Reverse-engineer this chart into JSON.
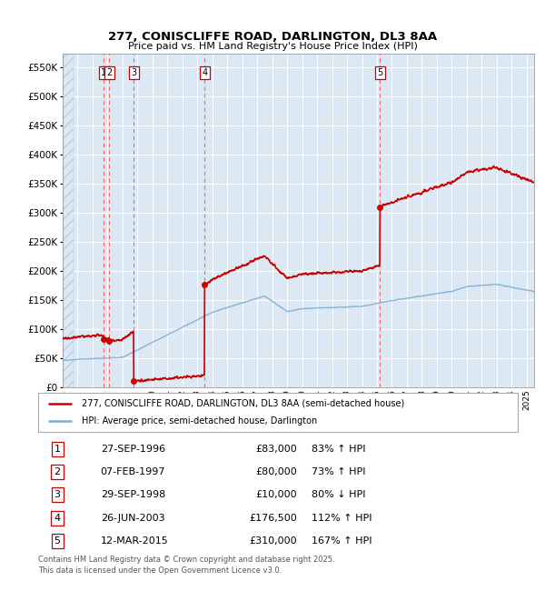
{
  "title_line1": "277, CONISCLIFFE ROAD, DARLINGTON, DL3 8AA",
  "title_line2": "Price paid vs. HM Land Registry's House Price Index (HPI)",
  "legend_label_red": "277, CONISCLIFFE ROAD, DARLINGTON, DL3 8AA (semi-detached house)",
  "legend_label_blue": "HPI: Average price, semi-detached house, Darlington",
  "footer": "Contains HM Land Registry data © Crown copyright and database right 2025.\nThis data is licensed under the Open Government Licence v3.0.",
  "transactions": [
    {
      "num": 1,
      "date_label": "27-SEP-1996",
      "price": 83000,
      "hpi_pct": "83% ↑ HPI",
      "x_year": 1996.74
    },
    {
      "num": 2,
      "date_label": "07-FEB-1997",
      "price": 80000,
      "hpi_pct": "73% ↑ HPI",
      "x_year": 1997.1
    },
    {
      "num": 3,
      "date_label": "29-SEP-1998",
      "price": 10000,
      "hpi_pct": "80% ↓ HPI",
      "x_year": 1998.74
    },
    {
      "num": 4,
      "date_label": "26-JUN-2003",
      "price": 176500,
      "hpi_pct": "112% ↑ HPI",
      "x_year": 2003.48
    },
    {
      "num": 5,
      "date_label": "12-MAR-2015",
      "price": 310000,
      "hpi_pct": "167% ↑ HPI",
      "x_year": 2015.19
    }
  ],
  "ylim": [
    0,
    575000
  ],
  "xlim": [
    1994.0,
    2025.5
  ],
  "yticks": [
    0,
    50000,
    100000,
    150000,
    200000,
    250000,
    300000,
    350000,
    400000,
    450000,
    500000,
    550000
  ],
  "ytick_labels": [
    "£0",
    "£50K",
    "£100K",
    "£150K",
    "£200K",
    "£250K",
    "£300K",
    "£350K",
    "£400K",
    "£450K",
    "£500K",
    "£550K"
  ],
  "plot_bg_color": "#dce9f5",
  "red_color": "#cc0000",
  "blue_color": "#7bafd4",
  "grid_color": "#ffffff",
  "vline_color": "#ff6666"
}
